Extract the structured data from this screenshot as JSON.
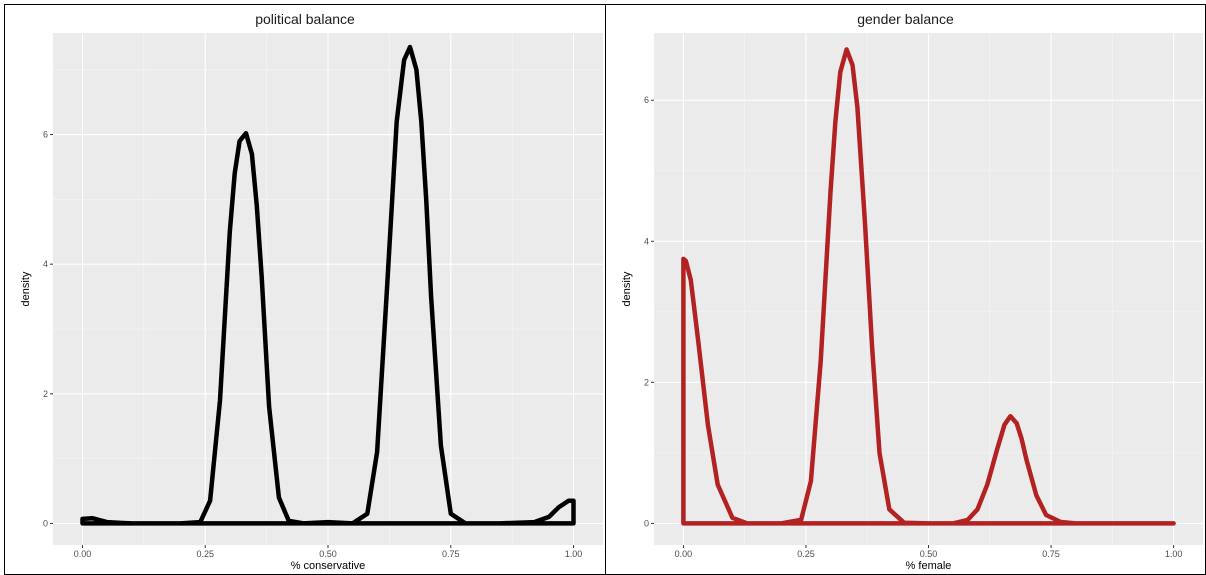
{
  "chart_data": [
    {
      "type": "line",
      "title": "political balance",
      "xlabel": "% conservative",
      "ylabel": "density",
      "xlim": [
        0,
        1
      ],
      "ylim": [
        0,
        7.4
      ],
      "x_ticks": [
        "0.00",
        "0.25",
        "0.50",
        "0.75",
        "1.00"
      ],
      "y_ticks": [
        "0",
        "2",
        "4",
        "6"
      ],
      "grid": true,
      "line_color": "#000000",
      "series": [
        {
          "x": [
            0.0,
            0.02,
            0.05,
            0.1,
            0.2,
            0.24,
            0.26,
            0.28,
            0.3,
            0.31,
            0.32,
            0.333,
            0.345,
            0.355,
            0.365,
            0.38,
            0.4,
            0.42,
            0.45,
            0.5,
            0.55,
            0.58,
            0.6,
            0.62,
            0.64,
            0.655,
            0.667,
            0.68,
            0.69,
            0.7,
            0.71,
            0.73,
            0.75,
            0.78,
            0.85,
            0.92,
            0.95,
            0.97,
            0.99,
            1.0
          ],
          "y": [
            0.07,
            0.08,
            0.02,
            0.0,
            0.0,
            0.02,
            0.35,
            1.9,
            4.5,
            5.4,
            5.9,
            6.02,
            5.7,
            4.9,
            3.8,
            1.8,
            0.4,
            0.04,
            0.0,
            0.02,
            0.0,
            0.15,
            1.1,
            3.6,
            6.2,
            7.15,
            7.35,
            7.0,
            6.2,
            5.0,
            3.5,
            1.2,
            0.15,
            0.0,
            0.0,
            0.02,
            0.1,
            0.25,
            0.35,
            0.35
          ]
        }
      ]
    },
    {
      "type": "line",
      "title": "gender balance",
      "xlabel": "% female",
      "ylabel": "density",
      "xlim": [
        0,
        1
      ],
      "ylim": [
        0,
        6.8
      ],
      "x_ticks": [
        "0.00",
        "0.25",
        "0.50",
        "0.75",
        "1.00"
      ],
      "y_ticks": [
        "0",
        "2",
        "4",
        "6"
      ],
      "grid": true,
      "line_color": "#b22222",
      "series": [
        {
          "x": [
            0.0,
            0.005,
            0.015,
            0.03,
            0.05,
            0.07,
            0.1,
            0.13,
            0.2,
            0.24,
            0.26,
            0.28,
            0.3,
            0.31,
            0.32,
            0.333,
            0.345,
            0.355,
            0.37,
            0.385,
            0.4,
            0.42,
            0.45,
            0.5,
            0.55,
            0.58,
            0.6,
            0.62,
            0.64,
            0.655,
            0.667,
            0.68,
            0.69,
            0.7,
            0.72,
            0.74,
            0.77,
            0.8,
            0.9,
            1.0
          ],
          "y": [
            3.75,
            3.72,
            3.45,
            2.6,
            1.4,
            0.55,
            0.08,
            0.0,
            0.0,
            0.05,
            0.6,
            2.3,
            4.7,
            5.7,
            6.4,
            6.72,
            6.5,
            5.9,
            4.3,
            2.5,
            1.0,
            0.2,
            0.01,
            0.0,
            0.0,
            0.05,
            0.2,
            0.55,
            1.05,
            1.4,
            1.52,
            1.42,
            1.2,
            0.9,
            0.4,
            0.12,
            0.02,
            0.0,
            0.0,
            0.0
          ]
        }
      ]
    }
  ]
}
